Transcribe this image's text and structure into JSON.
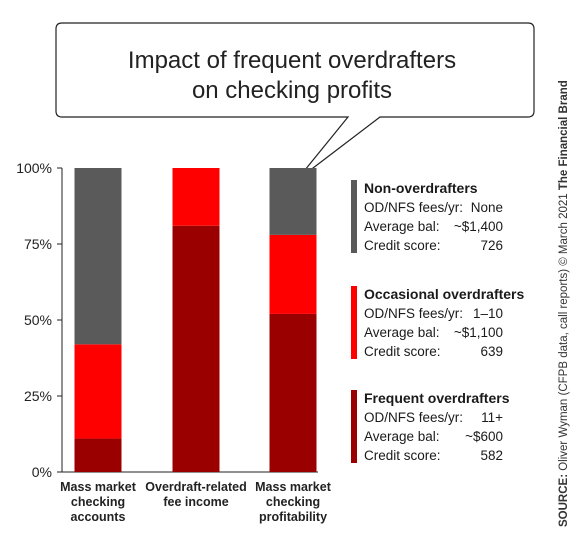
{
  "chart_data": {
    "type": "bar",
    "stacked": true,
    "title": "Impact of frequent overdrafters on checking profits",
    "categories": [
      [
        "Mass market",
        "checking",
        "accounts"
      ],
      [
        "Overdraft-related",
        "fee income"
      ],
      [
        "Mass market",
        "checking",
        "profitability"
      ]
    ],
    "ylim": [
      0,
      100
    ],
    "y_ticks": [
      "0%",
      "25%",
      "50%",
      "75%",
      "100%"
    ],
    "y_tick_values": [
      0,
      25,
      50,
      75,
      100
    ],
    "series": [
      {
        "name": "Frequent overdrafters",
        "color": "#9b0000",
        "values": [
          11,
          81,
          52
        ]
      },
      {
        "name": "Occasional overdrafters",
        "color": "#ff0000",
        "values": [
          31,
          19,
          26
        ]
      },
      {
        "name": "Non-overdrafters",
        "color": "#5a5a5a",
        "values": [
          58,
          0,
          22
        ]
      }
    ],
    "grid": false
  },
  "legend": [
    {
      "title": "Non-overdrafters",
      "color": "#5a5a5a",
      "rows": [
        [
          "OD/NFS fees/yr:",
          "None"
        ],
        [
          "Average bal:",
          "~$1,400"
        ],
        [
          "Credit score:",
          "726"
        ]
      ]
    },
    {
      "title": "Occasional overdrafters",
      "color": "#ff0000",
      "rows": [
        [
          "OD/NFS fees/yr:",
          "1–10"
        ],
        [
          "Average bal:",
          "~$1,100"
        ],
        [
          "Credit score:",
          "639"
        ]
      ]
    },
    {
      "title": "Frequent overdrafters",
      "color": "#9b0000",
      "rows": [
        [
          "OD/NFS fees/yr:",
          "11+"
        ],
        [
          "Average bal:",
          "~$600"
        ],
        [
          "Credit score:",
          "582"
        ]
      ]
    }
  ],
  "source": {
    "label": "SOURCE:",
    "text": " Oliver Wyman (CFPB data, call reports) © March 2021 ",
    "brand": "The Financial Brand"
  }
}
